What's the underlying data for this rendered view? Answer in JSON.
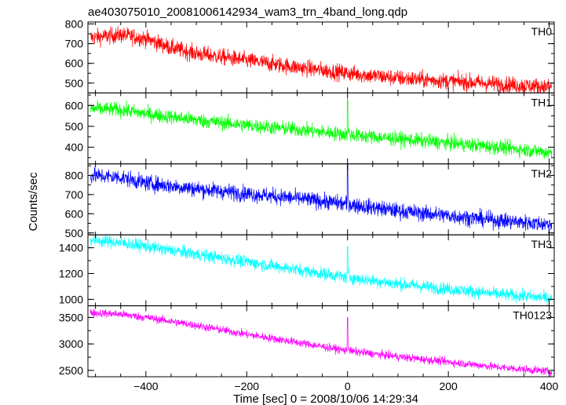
{
  "chart_data": {
    "type": "line",
    "title": "ae403075010_20081006142934_wam3_trn_4band_long.qdp",
    "xlabel": "Time [sec] 0 = 2008/10/06 14:29:34",
    "ylabel": "Counts/sec",
    "xlim": [
      -515,
      410
    ],
    "xticks": [
      -400,
      -200,
      0,
      200,
      400
    ],
    "xtick_labels": [
      "−400",
      "−200",
      "0",
      "200",
      "400"
    ],
    "grid": false,
    "panels": [
      {
        "name": "TH0",
        "color": "#ff0000",
        "ylim": [
          450,
          810
        ],
        "yticks": [
          500,
          600,
          700,
          800
        ],
        "ytick_labels": [
          "500",
          "600",
          "700",
          "800"
        ],
        "trend": [
          [
            -510,
            730
          ],
          [
            -450,
            745
          ],
          [
            -400,
            725
          ],
          [
            -350,
            680
          ],
          [
            -300,
            650
          ],
          [
            -200,
            615
          ],
          [
            -100,
            580
          ],
          [
            0,
            550
          ],
          [
            100,
            525
          ],
          [
            200,
            510
          ],
          [
            300,
            495
          ],
          [
            400,
            480
          ]
        ],
        "noise": 30,
        "spike": null
      },
      {
        "name": "TH1",
        "color": "#00ff00",
        "ylim": [
          320,
          660
        ],
        "yticks": [
          400,
          500,
          600
        ],
        "ytick_labels": [
          "400",
          "500",
          "600"
        ],
        "trend": [
          [
            -510,
            585
          ],
          [
            -450,
            580
          ],
          [
            -400,
            560
          ],
          [
            -300,
            530
          ],
          [
            -200,
            505
          ],
          [
            -100,
            485
          ],
          [
            0,
            460
          ],
          [
            100,
            440
          ],
          [
            200,
            420
          ],
          [
            300,
            400
          ],
          [
            400,
            375
          ]
        ],
        "noise": 25,
        "spike": {
          "x": 0,
          "y": 630
        }
      },
      {
        "name": "TH2",
        "color": "#0000ff",
        "ylim": [
          490,
          860
        ],
        "yticks": [
          500,
          600,
          700,
          800
        ],
        "ytick_labels": [
          "500",
          "600",
          "700",
          "800"
        ],
        "trend": [
          [
            -510,
            800
          ],
          [
            -450,
            790
          ],
          [
            -400,
            760
          ],
          [
            -300,
            730
          ],
          [
            -200,
            705
          ],
          [
            -100,
            680
          ],
          [
            0,
            650
          ],
          [
            100,
            615
          ],
          [
            200,
            590
          ],
          [
            300,
            565
          ],
          [
            400,
            545
          ]
        ],
        "noise": 30,
        "spike": {
          "x": 0,
          "y": 855
        }
      },
      {
        "name": "TH3",
        "color": "#00ffff",
        "ylim": [
          950,
          1500
        ],
        "yticks": [
          1000,
          1200,
          1400
        ],
        "ytick_labels": [
          "1000",
          "1200",
          "1400"
        ],
        "trend": [
          [
            -510,
            1460
          ],
          [
            -450,
            1440
          ],
          [
            -400,
            1410
          ],
          [
            -300,
            1350
          ],
          [
            -200,
            1290
          ],
          [
            -100,
            1230
          ],
          [
            0,
            1170
          ],
          [
            100,
            1120
          ],
          [
            200,
            1080
          ],
          [
            300,
            1040
          ],
          [
            400,
            1010
          ]
        ],
        "noise": 35,
        "spike": {
          "x": 0,
          "y": 1410
        }
      },
      {
        "name": "TH0123",
        "color": "#ff00ff",
        "ylim": [
          2380,
          3720
        ],
        "yticks": [
          2500,
          3000,
          3500
        ],
        "ytick_labels": [
          "2500",
          "3000",
          "3500"
        ],
        "trend": [
          [
            -510,
            3590
          ],
          [
            -450,
            3560
          ],
          [
            -400,
            3500
          ],
          [
            -300,
            3350
          ],
          [
            -200,
            3180
          ],
          [
            -100,
            3030
          ],
          [
            0,
            2870
          ],
          [
            100,
            2760
          ],
          [
            200,
            2660
          ],
          [
            300,
            2560
          ],
          [
            400,
            2480
          ]
        ],
        "noise": 55,
        "spike": {
          "x": 0,
          "y": 3500
        }
      }
    ]
  }
}
